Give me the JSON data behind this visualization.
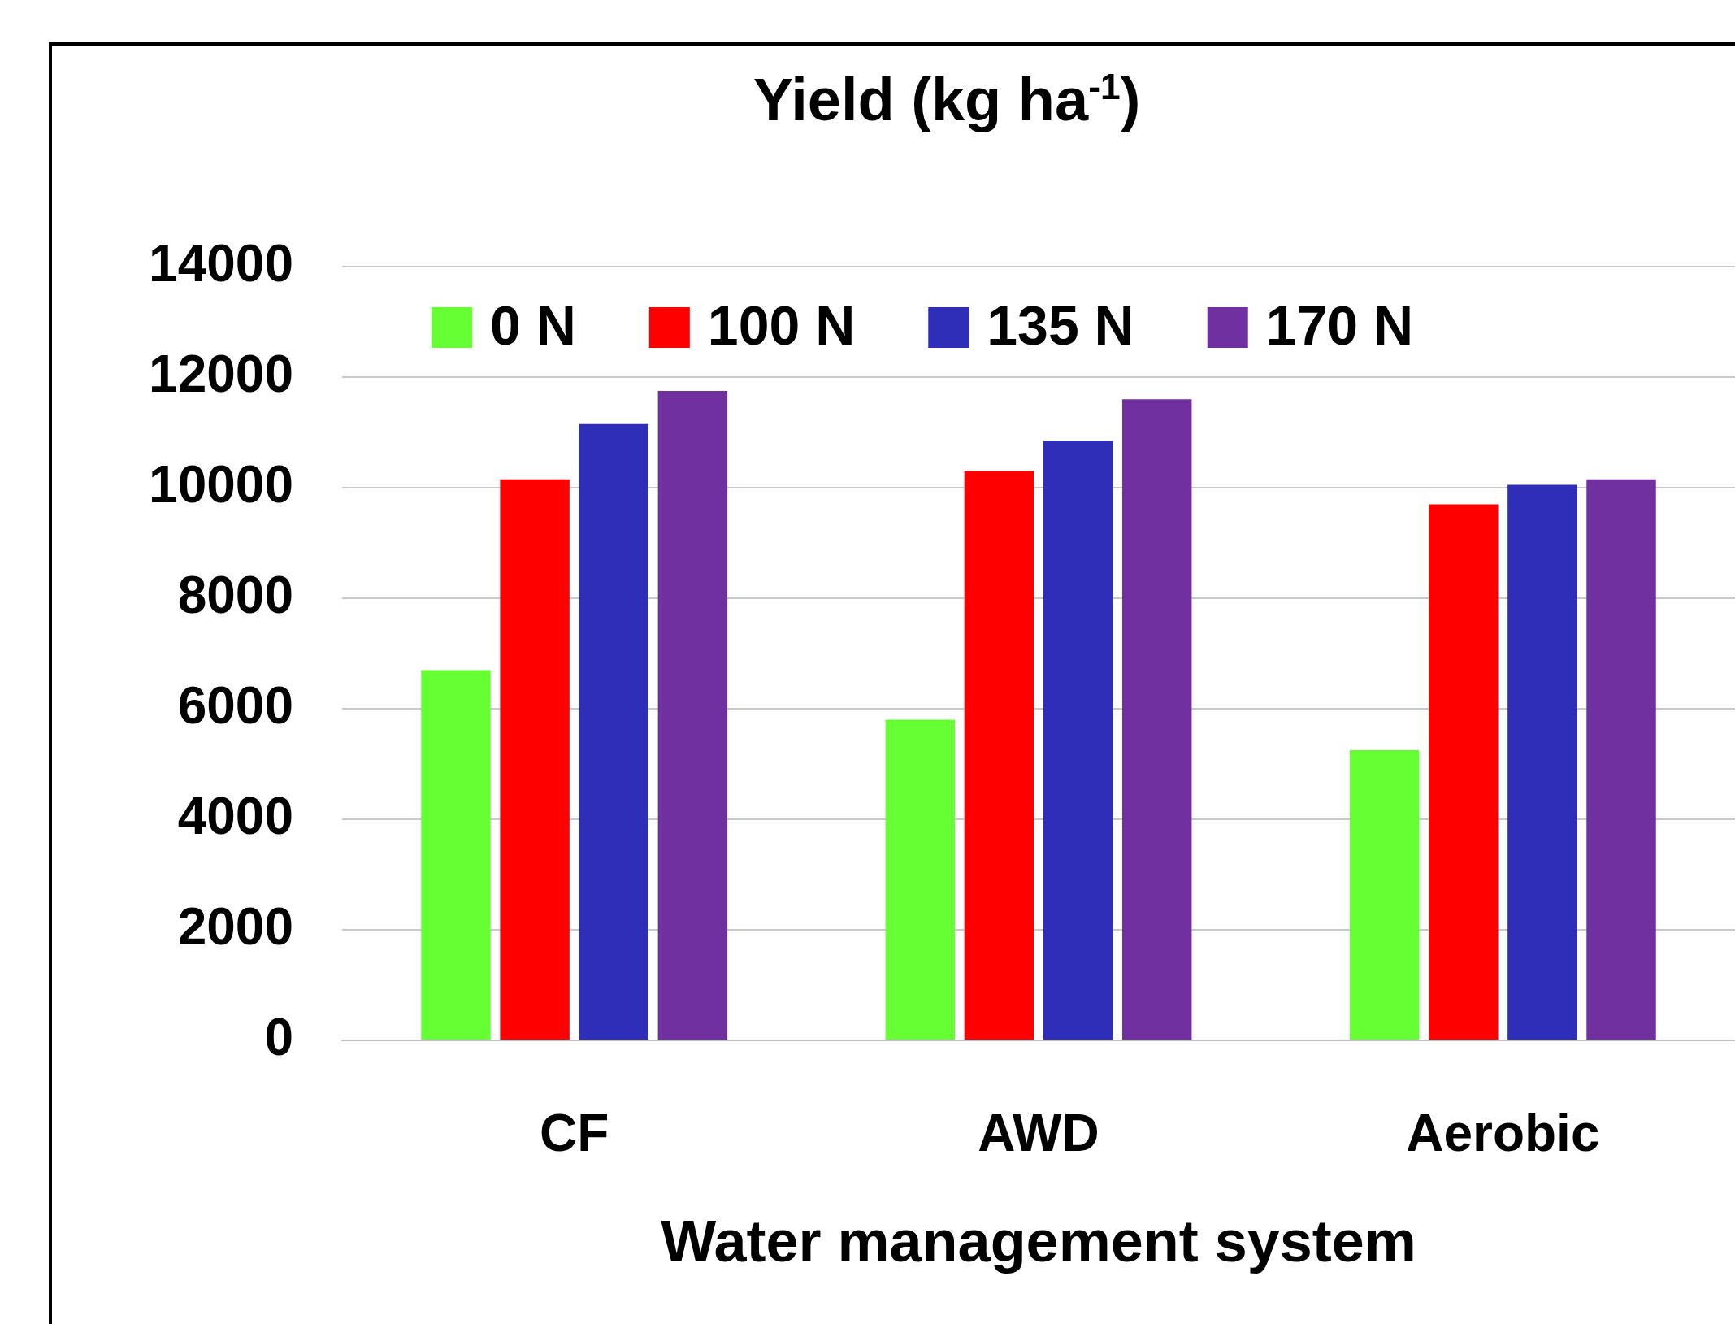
{
  "chart_data": {
    "type": "bar",
    "title": "Yield (kg ha$^{-1}$)",
    "xlabel": "Water management system",
    "categories": [
      "CF",
      "AWD",
      "Aerobic"
    ],
    "series": [
      {
        "name": "0 N",
        "color": "#66ff33",
        "values": [
          6700,
          5800,
          5250
        ]
      },
      {
        "name": "100 N",
        "color": "#ff0000",
        "values": [
          10150,
          10300,
          9700
        ]
      },
      {
        "name": "135 N",
        "color": "#2e2eb8",
        "values": [
          11150,
          10850,
          10050
        ]
      },
      {
        "name": "170 N",
        "color": "#7030a0",
        "values": [
          11750,
          11600,
          10150
        ]
      }
    ],
    "ylim": [
      0,
      14000
    ],
    "yticks": [
      0,
      2000,
      4000,
      6000,
      8000,
      10000,
      12000,
      14000
    ],
    "grid": "y",
    "legend": "top left"
  }
}
